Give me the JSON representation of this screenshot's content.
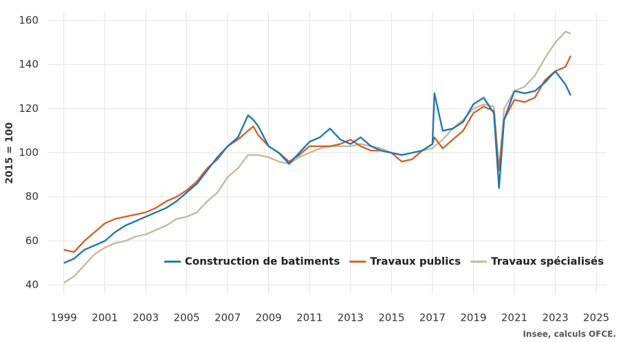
{
  "chart_data": {
    "type": "line",
    "y_label": "2015 = 100",
    "source": "Insee, calculs OFCE.",
    "x": [
      1999,
      1999.5,
      2000,
      2000.5,
      2001,
      2001.5,
      2002,
      2002.5,
      2003,
      2003.5,
      2004,
      2004.5,
      2005,
      2005.5,
      2006,
      2006.5,
      2007,
      2007.5,
      2008,
      2008.25,
      2008.5,
      2009,
      2009.5,
      2010,
      2010.5,
      2011,
      2011.5,
      2012,
      2012.5,
      2013,
      2013.5,
      2014,
      2014.5,
      2015,
      2015.5,
      2016,
      2016.5,
      2017,
      2017.1,
      2017.5,
      2018,
      2018.5,
      2019,
      2019.5,
      2020,
      2020.25,
      2020.5,
      2021,
      2021.5,
      2022,
      2022.5,
      2023,
      2023.5,
      2023.75
    ],
    "series": [
      {
        "name": "Construction de batiments",
        "color": "#1f77b4",
        "values": [
          50,
          52,
          56,
          58,
          60,
          64,
          67,
          69,
          71,
          73,
          75,
          78,
          82,
          86,
          92,
          98,
          103,
          107,
          117,
          115,
          112,
          103,
          100,
          95,
          100,
          105,
          107,
          111,
          106,
          104,
          107,
          103,
          101,
          100,
          99,
          100,
          101,
          104,
          127,
          110,
          111,
          114,
          122,
          125,
          118,
          84,
          115,
          128,
          127,
          128,
          132,
          137,
          131,
          126
        ]
      },
      {
        "name": "Travaux publics",
        "color": "#d2622a",
        "values": [
          56,
          55,
          60,
          64,
          68,
          70,
          71,
          72,
          73,
          75,
          78,
          80,
          83,
          87,
          93,
          97,
          103,
          106,
          110,
          112,
          108,
          103,
          100,
          96,
          99,
          103,
          103,
          103,
          104,
          106,
          103,
          101,
          101,
          100,
          96,
          97,
          101,
          104,
          107,
          102,
          106,
          110,
          118,
          121,
          119,
          92,
          115,
          124,
          123,
          125,
          133,
          137,
          139,
          144
        ]
      },
      {
        "name": "Travaux spécialisés",
        "color": "#c8b89c",
        "values": [
          41,
          44,
          49,
          54,
          57,
          59,
          60,
          62,
          63,
          65,
          67,
          70,
          71,
          73,
          78,
          82,
          89,
          93,
          99,
          99,
          99,
          98,
          96,
          95,
          98,
          100,
          102,
          103,
          103,
          103,
          104,
          103,
          102,
          100,
          99,
          100,
          101,
          102,
          103,
          106,
          111,
          115,
          120,
          122,
          121,
          92,
          120,
          128,
          130,
          135,
          143,
          150,
          155,
          154
        ]
      }
    ],
    "xlim": [
      1998.2,
      2025.5
    ],
    "xticks": [
      1999,
      2001,
      2003,
      2005,
      2007,
      2009,
      2011,
      2013,
      2015,
      2017,
      2019,
      2021,
      2023,
      2025
    ],
    "ylim": [
      36,
      164
    ],
    "yticks": [
      40,
      60,
      80,
      100,
      120,
      140,
      160
    ],
    "grid": true,
    "legend": "bottom-right"
  }
}
